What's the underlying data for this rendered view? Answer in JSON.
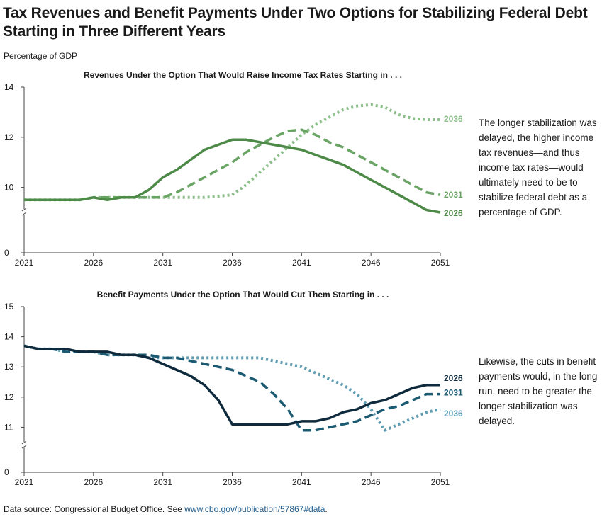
{
  "title": "Tax Revenues and Benefit Payments Under Two Options for Stabilizing Federal Debt Starting in Three Different Years",
  "units": "Percentage of GDP",
  "notes": {
    "top": "The longer stabilization was delayed, the higher income tax revenues—and thus income tax rates—would ultimately need to be to stabilize federal debt as a percentage of GDP.",
    "bottom": "Likewise, the cuts in benefit payments would, in the long run, need to be greater the longer stabilization was delayed."
  },
  "source": {
    "prefix": "Data source: Congressional Budget Office. See ",
    "link": "www.cbo.gov/publication/57867#data",
    "suffix": "."
  },
  "chart_data": [
    {
      "type": "line",
      "title": "Revenues Under the Option That Would Raise Income Tax Rates Starting in . . .",
      "ylim": [
        0,
        14
      ],
      "yticks": [
        0,
        10,
        12,
        14
      ],
      "axis_break": true,
      "xlim": [
        2021,
        2051
      ],
      "xticks": [
        2021,
        2026,
        2031,
        2036,
        2041,
        2046,
        2051
      ],
      "x": [
        2021,
        2022,
        2023,
        2024,
        2025,
        2026,
        2027,
        2028,
        2029,
        2030,
        2031,
        2032,
        2033,
        2034,
        2035,
        2036,
        2037,
        2038,
        2039,
        2040,
        2041,
        2042,
        2043,
        2044,
        2045,
        2046,
        2047,
        2048,
        2049,
        2050,
        2051
      ],
      "series": [
        {
          "name": "2026",
          "color": "#4d8a48",
          "dash": "solid",
          "values": [
            9.5,
            9.5,
            9.5,
            9.5,
            9.5,
            9.6,
            9.5,
            9.6,
            9.6,
            9.9,
            10.4,
            10.7,
            11.1,
            11.5,
            11.7,
            11.9,
            11.9,
            11.8,
            11.7,
            11.6,
            11.5,
            11.3,
            11.1,
            10.9,
            10.6,
            10.3,
            10.0,
            9.7,
            9.4,
            9.1,
            9.0
          ]
        },
        {
          "name": "2031",
          "color": "#6aa465",
          "dash": "dashed",
          "values": [
            9.5,
            9.5,
            9.5,
            9.5,
            9.5,
            9.6,
            9.6,
            9.6,
            9.6,
            9.6,
            9.6,
            9.8,
            10.1,
            10.4,
            10.7,
            11.0,
            11.4,
            11.7,
            12.0,
            12.25,
            12.3,
            12.1,
            11.8,
            11.6,
            11.3,
            11.0,
            10.7,
            10.4,
            10.1,
            9.8,
            9.7
          ]
        },
        {
          "name": "2036",
          "color": "#8cbf8a",
          "dash": "dotted",
          "values": [
            9.5,
            9.5,
            9.5,
            9.5,
            9.5,
            9.6,
            9.6,
            9.6,
            9.6,
            9.6,
            9.6,
            9.6,
            9.6,
            9.6,
            9.65,
            9.7,
            10.1,
            10.6,
            11.1,
            11.6,
            12.1,
            12.5,
            12.8,
            13.1,
            13.25,
            13.3,
            13.2,
            12.9,
            12.75,
            12.7,
            12.7
          ]
        }
      ]
    },
    {
      "type": "line",
      "title": "Benefit Payments Under the Option That Would Cut Them Starting in . . .",
      "ylim": [
        0,
        15
      ],
      "yticks": [
        0,
        11,
        12,
        13,
        14,
        15
      ],
      "axis_break": true,
      "xlim": [
        2021,
        2051
      ],
      "xticks": [
        2021,
        2026,
        2031,
        2036,
        2041,
        2046,
        2051
      ],
      "x": [
        2021,
        2022,
        2023,
        2024,
        2025,
        2026,
        2027,
        2028,
        2029,
        2030,
        2031,
        2032,
        2033,
        2034,
        2035,
        2036,
        2037,
        2038,
        2039,
        2040,
        2041,
        2042,
        2043,
        2044,
        2045,
        2046,
        2047,
        2048,
        2049,
        2050,
        2051
      ],
      "series": [
        {
          "name": "2026",
          "color": "#0e2a3c",
          "dash": "solid",
          "values": [
            13.7,
            13.6,
            13.6,
            13.6,
            13.5,
            13.5,
            13.5,
            13.4,
            13.4,
            13.3,
            13.1,
            12.9,
            12.7,
            12.4,
            11.9,
            11.1,
            11.1,
            11.1,
            11.1,
            11.1,
            11.2,
            11.2,
            11.3,
            11.5,
            11.6,
            11.8,
            11.9,
            12.1,
            12.3,
            12.4,
            12.4
          ]
        },
        {
          "name": "2031",
          "color": "#1c5a72",
          "dash": "dashed",
          "values": [
            13.7,
            13.6,
            13.6,
            13.5,
            13.5,
            13.5,
            13.4,
            13.4,
            13.4,
            13.4,
            13.3,
            13.3,
            13.2,
            13.1,
            13.0,
            12.9,
            12.7,
            12.5,
            12.1,
            11.6,
            10.9,
            10.9,
            11.0,
            11.1,
            11.2,
            11.4,
            11.6,
            11.7,
            11.9,
            12.1,
            12.1
          ]
        },
        {
          "name": "2036",
          "color": "#5f9db2",
          "dash": "dotted",
          "values": [
            13.7,
            13.6,
            13.6,
            13.5,
            13.5,
            13.5,
            13.4,
            13.4,
            13.4,
            13.3,
            13.3,
            13.3,
            13.3,
            13.3,
            13.3,
            13.3,
            13.3,
            13.3,
            13.2,
            13.1,
            13.0,
            12.8,
            12.6,
            12.4,
            12.1,
            11.6,
            10.9,
            11.1,
            11.3,
            11.5,
            11.6
          ]
        }
      ]
    }
  ]
}
